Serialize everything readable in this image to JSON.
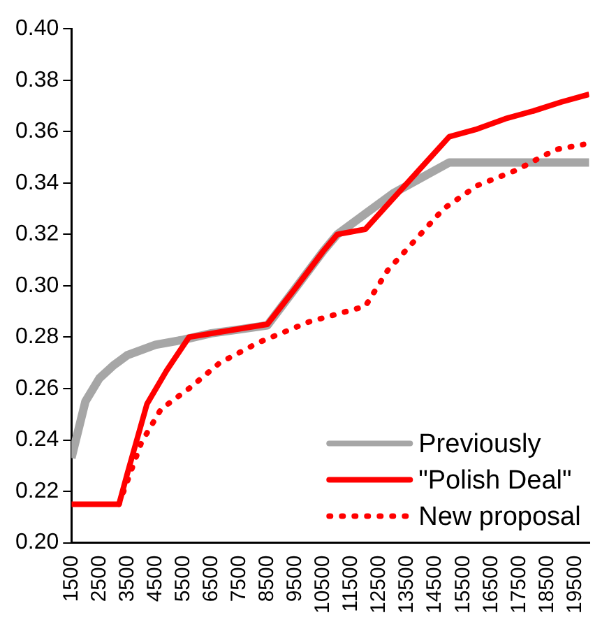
{
  "chart_data": {
    "type": "line",
    "xlim": [
      1500,
      20000
    ],
    "xticks": [
      1500,
      2500,
      3500,
      4500,
      5500,
      6500,
      7500,
      8500,
      9500,
      10500,
      11500,
      12500,
      13500,
      14500,
      15500,
      16500,
      17500,
      18500,
      19500
    ],
    "ylim": [
      0.2,
      0.4
    ],
    "yticks": [
      {
        "value": 0.2,
        "label": "0.20"
      },
      {
        "value": 0.22,
        "label": "0.22"
      },
      {
        "value": 0.24,
        "label": "0.24"
      },
      {
        "value": 0.26,
        "label": "0.26"
      },
      {
        "value": 0.28,
        "label": "0.28"
      },
      {
        "value": 0.3,
        "label": "0.30"
      },
      {
        "value": 0.32,
        "label": "0.32"
      },
      {
        "value": 0.34,
        "label": "0.34"
      },
      {
        "value": 0.36,
        "label": "0.36"
      },
      {
        "value": 0.38,
        "label": "0.38"
      },
      {
        "value": 0.4,
        "label": "0.40"
      }
    ],
    "grid": false,
    "legend": "bottom right",
    "marker": "none",
    "series": [
      {
        "name": "Previously",
        "color": "#a6a6a6",
        "line_style": "solid",
        "x": [
          1500,
          2000,
          2500,
          3000,
          3500,
          4500,
          5500,
          6500,
          7500,
          8500,
          9500,
          10500,
          11000,
          12000,
          13000,
          14000,
          15000,
          20000
        ],
        "values": [
          0.233,
          0.255,
          0.264,
          0.269,
          0.273,
          0.277,
          0.279,
          0.2815,
          0.283,
          0.2846,
          0.299,
          0.3135,
          0.32,
          0.328,
          0.336,
          0.342,
          0.348,
          0.348
        ]
      },
      {
        "name": "\"Polish Deal\"",
        "color": "#ff0000",
        "line_style": "solid",
        "x": [
          1500,
          3200,
          3500,
          4200,
          4900,
          5700,
          8500,
          9500,
          10500,
          11000,
          12000,
          13000,
          14000,
          15000,
          16000,
          17000,
          18000,
          19000,
          20000
        ],
        "values": [
          0.215,
          0.215,
          0.227,
          0.254,
          0.267,
          0.28,
          0.285,
          0.299,
          0.3135,
          0.32,
          0.322,
          0.334,
          0.346,
          0.358,
          0.361,
          0.365,
          0.368,
          0.3715,
          0.3745
        ]
      },
      {
        "name": "New proposal",
        "color": "#ff0000",
        "line_style": "dotted",
        "x": [
          3200,
          4000,
          4700,
          5700,
          6800,
          8200,
          10000,
          12000,
          12800,
          13800,
          14800,
          16000,
          17400,
          18800,
          19800
        ],
        "values": [
          0.215,
          0.239,
          0.252,
          0.26,
          0.27,
          0.278,
          0.286,
          0.292,
          0.306,
          0.318,
          0.33,
          0.339,
          0.345,
          0.353,
          0.355
        ]
      }
    ]
  }
}
